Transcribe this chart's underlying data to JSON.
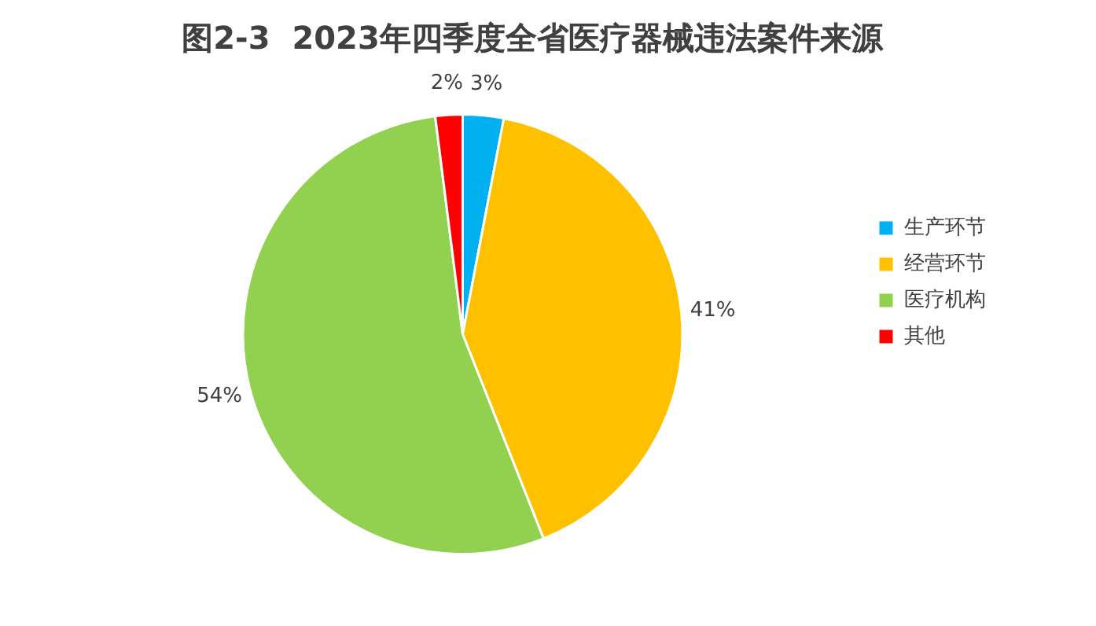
{
  "chart_data": {
    "type": "pie",
    "title": "图2-3  2023年四季度全省医疗器械违法案件来源",
    "categories": [
      "生产环节",
      "经营环节",
      "医疗机构",
      "其他"
    ],
    "values": [
      3,
      41,
      54,
      2
    ],
    "colors": [
      "#00b0f0",
      "#ffc000",
      "#92d050",
      "#ff0000"
    ],
    "value_labels": [
      "3%",
      "41%",
      "54%",
      "2%"
    ],
    "legend": "right"
  }
}
